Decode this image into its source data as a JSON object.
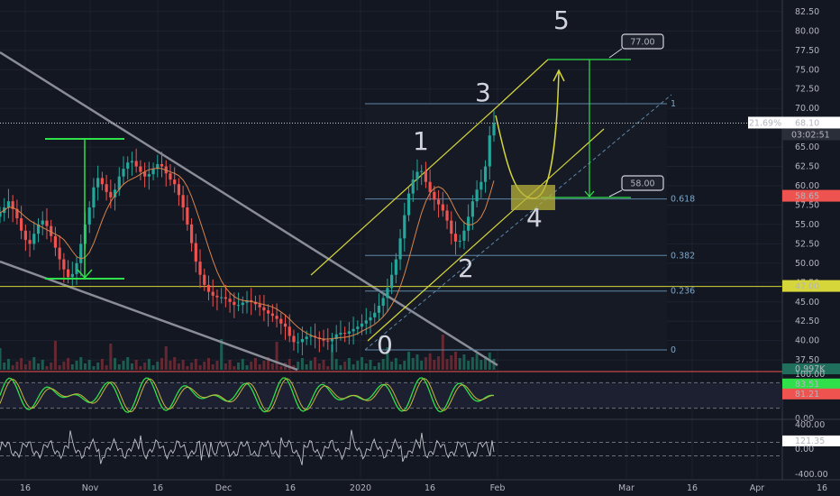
{
  "chart_data": {
    "type": "candlestick",
    "title": "",
    "price_axis": {
      "ticks": [
        "82.50",
        "80.00",
        "77.50",
        "75.00",
        "72.50",
        "70.00",
        "65.00",
        "62.50",
        "60.00",
        "57.50",
        "55.00",
        "52.50",
        "50.00",
        "47.50",
        "45.00",
        "42.50",
        "40.00",
        "37.50"
      ],
      "range": [
        36.0,
        84.0
      ]
    },
    "time_axis": {
      "ticks": [
        "16",
        "Nov",
        "16",
        "Dec",
        "16",
        "2020",
        "16",
        "Feb",
        "Mar",
        "16",
        "Apr",
        "16"
      ]
    },
    "last_price": {
      "value": "68.10",
      "change": "21.69%",
      "countdown": "03:02:51"
    },
    "badges": {
      "level_a": "58.65",
      "level_b": "47.00",
      "volume": "0.997K"
    },
    "callouts": {
      "target_high": "77.00",
      "target_low": "58.00"
    },
    "fib_levels": [
      {
        "label": "1",
        "value": 70.6
      },
      {
        "label": "0.618",
        "value": 58.3
      },
      {
        "label": "0.382",
        "value": 51.0
      },
      {
        "label": "0.236",
        "value": 46.4
      },
      {
        "label": "0",
        "value": 38.8
      }
    ],
    "wave_labels": [
      "0",
      "1",
      "2",
      "3",
      "4",
      "5"
    ],
    "horizontal_line": 47.0,
    "close_series": [
      56.5,
      57.2,
      58.0,
      57.0,
      55.8,
      54.2,
      53.0,
      52.5,
      53.8,
      55.0,
      55.5,
      54.8,
      53.5,
      52.0,
      50.5,
      49.2,
      48.2,
      48.6,
      50.0,
      52.5,
      55.0,
      57.2,
      59.8,
      61.0,
      60.2,
      59.2,
      58.5,
      59.5,
      61.2,
      62.2,
      63.0,
      63.2,
      62.5,
      61.8,
      61.2,
      61.5,
      62.2,
      62.8,
      62.5,
      61.6,
      60.8,
      60.2,
      58.8,
      57.2,
      55.0,
      52.6,
      50.2,
      48.5,
      47.2,
      46.3,
      45.8,
      45.6,
      45.6,
      45.4,
      45.0,
      44.6,
      44.6,
      44.9,
      45.2,
      45.0,
      44.7,
      44.3,
      43.9,
      43.5,
      43.2,
      42.8,
      42.2,
      41.8,
      40.6,
      39.8,
      39.8,
      40.2,
      40.5,
      40.6,
      40.4,
      40.2,
      40.0,
      39.9,
      40.2,
      40.8,
      41.0,
      40.9,
      41.2,
      41.5,
      41.8,
      42.2,
      42.6,
      43.0,
      43.6,
      44.5,
      45.5,
      46.8,
      48.5,
      50.5,
      53.2,
      56.2,
      59.0,
      60.8,
      61.8,
      61.9,
      60.5,
      59.2,
      58.2,
      57.6,
      56.8,
      55.5,
      53.8,
      52.8,
      52.9,
      54.2,
      56.0,
      58.0,
      59.5,
      60.5,
      62.5,
      66.5,
      68.1
    ],
    "rsi_panel": {
      "ticks": [
        "100.00",
        "83.51",
        "81.21",
        "0.00"
      ],
      "latest": "83.51",
      "signal": "81.21"
    },
    "cci_panel": {
      "ticks": [
        "400.00",
        "121.35",
        "0.00",
        "-400.00"
      ],
      "latest": "121.35"
    }
  }
}
